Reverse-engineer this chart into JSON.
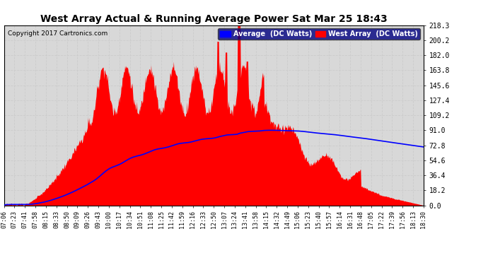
{
  "title": "West Array Actual & Running Average Power Sat Mar 25 18:43",
  "copyright": "Copyright 2017 Cartronics.com",
  "legend_labels": [
    "Average  (DC Watts)",
    "West Array  (DC Watts)"
  ],
  "legend_colors": [
    "#0000ff",
    "#ff0000"
  ],
  "legend_bg": "#000080",
  "ylabel_right_ticks": [
    0.0,
    18.2,
    36.4,
    54.6,
    72.8,
    91.0,
    109.2,
    127.4,
    145.6,
    163.8,
    182.0,
    200.2,
    218.3
  ],
  "ymin": 0.0,
  "ymax": 218.3,
  "bg_color": "#ffffff",
  "plot_bg_color": "#d8d8d8",
  "grid_color": "#aaaaaa",
  "title_fontsize": 11,
  "xtick_labels": [
    "07:06",
    "07:23",
    "07:41",
    "07:58",
    "08:15",
    "08:33",
    "08:50",
    "09:09",
    "09:26",
    "09:43",
    "10:00",
    "10:17",
    "10:34",
    "10:51",
    "11:08",
    "11:25",
    "11:42",
    "11:59",
    "12:16",
    "12:33",
    "12:50",
    "13:07",
    "13:24",
    "13:41",
    "13:58",
    "14:15",
    "14:32",
    "14:49",
    "15:06",
    "15:23",
    "15:40",
    "15:57",
    "16:14",
    "16:31",
    "16:48",
    "17:05",
    "17:22",
    "17:39",
    "17:56",
    "18:13",
    "18:30"
  ]
}
